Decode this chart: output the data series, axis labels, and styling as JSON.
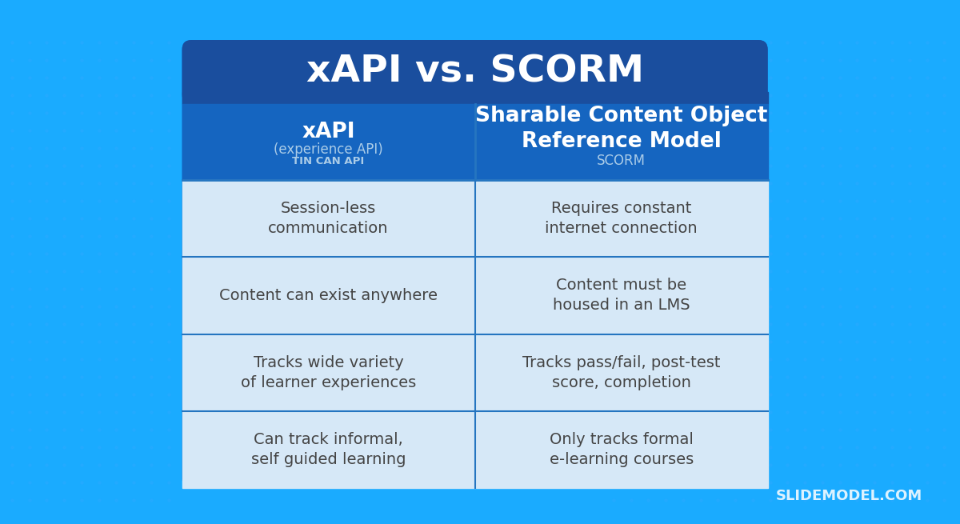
{
  "title": "xAPI vs. SCORM",
  "background_color": "#1AABFF",
  "dot_color": "#29AAFF",
  "table_outer_bg": "#1565C0",
  "header_bg": "#1565C0",
  "title_bg": "#1A4E9E",
  "cell_bg": "#D6E8F7",
  "cell_bg_alt": "#C8DDEF",
  "divider_color": "#2575C0",
  "title_text_color": "#FFFFFF",
  "header_text_color": "#FFFFFF",
  "cell_text_color": "#444444",
  "col1_header": "xAPI",
  "col1_sub1": "(experience API)",
  "col1_sub2": "TIN CAN API",
  "col2_header": "Sharable Content Object\nReference Model",
  "col2_sub1": "SCORM",
  "rows": [
    [
      "Session-less\ncommunication",
      "Requires constant\ninternet connection"
    ],
    [
      "Content can exist anywhere",
      "Content must be\nhoused in an LMS"
    ],
    [
      "Tracks wide variety\nof learner experiences",
      "Tracks pass/fail, post-test\nscore, completion"
    ],
    [
      "Can track informal,\nself guided learning",
      "Only tracks formal\ne-learning courses"
    ]
  ],
  "watermark": "SLIDEMODEL.COM"
}
